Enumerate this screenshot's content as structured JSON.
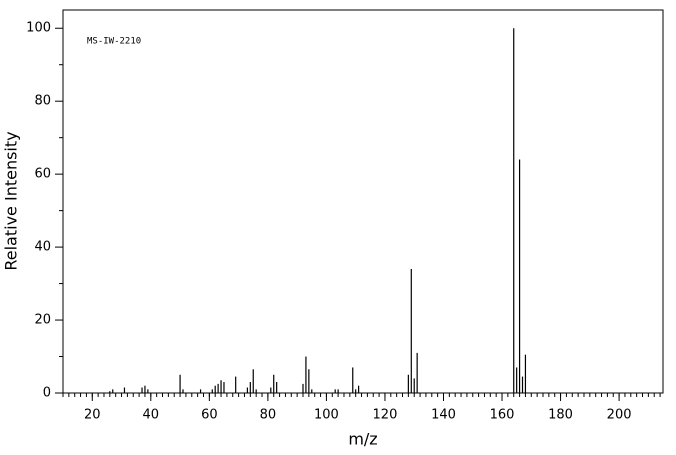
{
  "chart_data": {
    "type": "stick",
    "annotation": "MS-IW-2210",
    "x_label": "m/z",
    "y_label": "Relative Intensity",
    "color": "#000000",
    "x": [
      26,
      27,
      31,
      37,
      38,
      39,
      50,
      51,
      57,
      61,
      62,
      63,
      64,
      65,
      69,
      73,
      74,
      75,
      76,
      81,
      82,
      83,
      92,
      93,
      94,
      95,
      103,
      104,
      109,
      110,
      111,
      128,
      129,
      130,
      131,
      164,
      165,
      166,
      167,
      168
    ],
    "values": [
      0.5,
      1,
      1.5,
      1.5,
      2,
      1,
      5,
      1,
      1,
      1,
      2,
      2.5,
      3.5,
      3,
      4.5,
      1.5,
      3,
      6.5,
      1,
      1.5,
      5,
      3,
      2.5,
      10,
      6.5,
      1,
      1,
      1,
      7,
      1,
      2,
      5,
      34,
      4,
      11,
      100,
      7,
      64,
      4.5,
      10.5
    ],
    "xlim": [
      10,
      215
    ],
    "ylim": [
      0,
      105
    ],
    "xticks": [
      20,
      40,
      60,
      80,
      100,
      120,
      140,
      160,
      180,
      200
    ],
    "yticks": [
      0,
      20,
      40,
      60,
      80,
      100
    ]
  }
}
